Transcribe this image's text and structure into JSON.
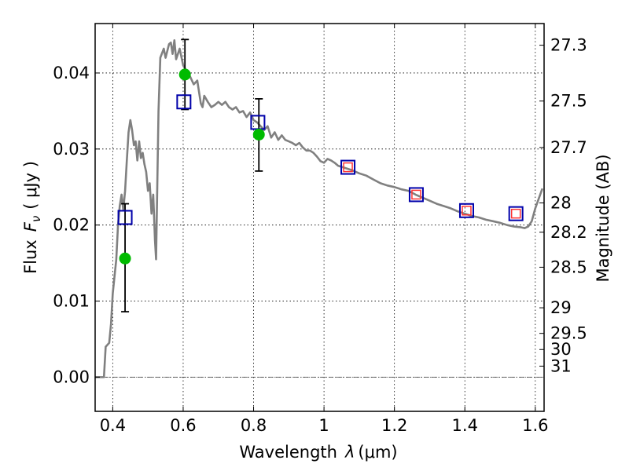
{
  "chart_data": {
    "type": "scatter",
    "title": "",
    "xlabel": "Wavelength",
    "xlabel_symbol": "λ",
    "xlabel_unit": "(μm)",
    "ylabel": "Flux",
    "ylabel_symbol": "F",
    "ylabel_subscript": "ν",
    "ylabel_unit": "( μJy )",
    "y2label": "Magnitude (AB)",
    "xlim": [
      0.35,
      1.625
    ],
    "ylim": [
      -0.0045,
      0.0465
    ],
    "grid": true,
    "xticks": [
      {
        "value": 0.4,
        "label": "0.4"
      },
      {
        "value": 0.6,
        "label": "0.6"
      },
      {
        "value": 0.8,
        "label": "0.8"
      },
      {
        "value": 1.0,
        "label": "1"
      },
      {
        "value": 1.2,
        "label": "1.2"
      },
      {
        "value": 1.4,
        "label": "1.4"
      },
      {
        "value": 1.6,
        "label": "1.6"
      }
    ],
    "yticks": [
      {
        "value": 0.0,
        "label": "0.00"
      },
      {
        "value": 0.01,
        "label": "0.01"
      },
      {
        "value": 0.02,
        "label": "0.02"
      },
      {
        "value": 0.03,
        "label": "0.03"
      },
      {
        "value": 0.04,
        "label": "0.04"
      }
    ],
    "magnitude_ticks": [
      {
        "mag": 27.3,
        "label": "27.3"
      },
      {
        "mag": 27.5,
        "label": "27.5"
      },
      {
        "mag": 27.7,
        "label": "27.7"
      },
      {
        "mag": 28.0,
        "label": "28"
      },
      {
        "mag": 28.2,
        "label": "28.2"
      },
      {
        "mag": 28.5,
        "label": "28.5"
      },
      {
        "mag": 29.0,
        "label": "29"
      },
      {
        "mag": 29.5,
        "label": "29.5"
      },
      {
        "mag": 30.0,
        "label": "30"
      },
      {
        "mag": 31.0,
        "label": "31"
      }
    ],
    "colors": {
      "sed": "#808080",
      "observed": "#00bb00",
      "model_square": "#0000aa",
      "inner_square": "#ff3333",
      "errorbar": "#000000"
    },
    "sed_curve": [
      [
        0.35,
        0.0
      ],
      [
        0.375,
        0.0
      ],
      [
        0.38,
        0.004
      ],
      [
        0.39,
        0.0045
      ],
      [
        0.395,
        0.007
      ],
      [
        0.4,
        0.011
      ],
      [
        0.41,
        0.0155
      ],
      [
        0.415,
        0.02
      ],
      [
        0.42,
        0.0225
      ],
      [
        0.425,
        0.024
      ],
      [
        0.43,
        0.022
      ],
      [
        0.435,
        0.0245
      ],
      [
        0.44,
        0.0285
      ],
      [
        0.445,
        0.0322
      ],
      [
        0.45,
        0.0338
      ],
      [
        0.455,
        0.0325
      ],
      [
        0.46,
        0.0305
      ],
      [
        0.465,
        0.031
      ],
      [
        0.47,
        0.0285
      ],
      [
        0.475,
        0.031
      ],
      [
        0.48,
        0.0288
      ],
      [
        0.485,
        0.0295
      ],
      [
        0.49,
        0.028
      ],
      [
        0.495,
        0.027
      ],
      [
        0.5,
        0.0245
      ],
      [
        0.505,
        0.0255
      ],
      [
        0.51,
        0.0215
      ],
      [
        0.515,
        0.024
      ],
      [
        0.52,
        0.018
      ],
      [
        0.523,
        0.0155
      ],
      [
        0.53,
        0.035
      ],
      [
        0.535,
        0.042
      ],
      [
        0.545,
        0.0432
      ],
      [
        0.55,
        0.042
      ],
      [
        0.56,
        0.0438
      ],
      [
        0.565,
        0.044
      ],
      [
        0.57,
        0.0425
      ],
      [
        0.575,
        0.0443
      ],
      [
        0.58,
        0.0418
      ],
      [
        0.59,
        0.0432
      ],
      [
        0.6,
        0.041
      ],
      [
        0.61,
        0.0402
      ],
      [
        0.62,
        0.0395
      ],
      [
        0.63,
        0.0385
      ],
      [
        0.64,
        0.039
      ],
      [
        0.65,
        0.036
      ],
      [
        0.655,
        0.0355
      ],
      [
        0.66,
        0.037
      ],
      [
        0.67,
        0.0362
      ],
      [
        0.68,
        0.0355
      ],
      [
        0.69,
        0.0358
      ],
      [
        0.7,
        0.0362
      ],
      [
        0.71,
        0.0358
      ],
      [
        0.72,
        0.0362
      ],
      [
        0.73,
        0.0355
      ],
      [
        0.74,
        0.0352
      ],
      [
        0.75,
        0.0355
      ],
      [
        0.76,
        0.0348
      ],
      [
        0.77,
        0.035
      ],
      [
        0.78,
        0.0342
      ],
      [
        0.79,
        0.0348
      ],
      [
        0.8,
        0.0338
      ],
      [
        0.81,
        0.0335
      ],
      [
        0.82,
        0.033
      ],
      [
        0.83,
        0.0325
      ],
      [
        0.84,
        0.033
      ],
      [
        0.85,
        0.0315
      ],
      [
        0.86,
        0.0322
      ],
      [
        0.87,
        0.0312
      ],
      [
        0.88,
        0.0318
      ],
      [
        0.89,
        0.0312
      ],
      [
        0.9,
        0.031
      ],
      [
        0.91,
        0.0308
      ],
      [
        0.92,
        0.0305
      ],
      [
        0.93,
        0.0308
      ],
      [
        0.94,
        0.0302
      ],
      [
        0.95,
        0.0298
      ],
      [
        0.96,
        0.0298
      ],
      [
        0.97,
        0.0295
      ],
      [
        0.98,
        0.029
      ],
      [
        0.99,
        0.0284
      ],
      [
        1.0,
        0.0282
      ],
      [
        1.01,
        0.0287
      ],
      [
        1.02,
        0.0285
      ],
      [
        1.03,
        0.0282
      ],
      [
        1.04,
        0.0278
      ],
      [
        1.06,
        0.0275
      ],
      [
        1.08,
        0.0272
      ],
      [
        1.1,
        0.0268
      ],
      [
        1.12,
        0.0265
      ],
      [
        1.14,
        0.026
      ],
      [
        1.16,
        0.0255
      ],
      [
        1.18,
        0.0252
      ],
      [
        1.2,
        0.025
      ],
      [
        1.22,
        0.0247
      ],
      [
        1.24,
        0.0245
      ],
      [
        1.26,
        0.024
      ],
      [
        1.28,
        0.0236
      ],
      [
        1.3,
        0.0232
      ],
      [
        1.32,
        0.0228
      ],
      [
        1.34,
        0.0225
      ],
      [
        1.36,
        0.0222
      ],
      [
        1.38,
        0.0218
      ],
      [
        1.4,
        0.0215
      ],
      [
        1.42,
        0.0212
      ],
      [
        1.44,
        0.021
      ],
      [
        1.46,
        0.0207
      ],
      [
        1.48,
        0.0205
      ],
      [
        1.5,
        0.0203
      ],
      [
        1.52,
        0.02
      ],
      [
        1.54,
        0.0198
      ],
      [
        1.56,
        0.0197
      ],
      [
        1.57,
        0.0196
      ],
      [
        1.58,
        0.0198
      ],
      [
        1.59,
        0.0205
      ],
      [
        1.6,
        0.0222
      ],
      [
        1.61,
        0.0235
      ],
      [
        1.62,
        0.0248
      ]
    ],
    "observed_points": [
      {
        "x": 0.435,
        "y": 0.0156,
        "yerr_low": 0.0086,
        "yerr_high": 0.0228
      },
      {
        "x": 0.605,
        "y": 0.0398,
        "yerr_low": 0.0352,
        "yerr_high": 0.0444
      },
      {
        "x": 0.815,
        "y": 0.0319,
        "yerr_low": 0.0271,
        "yerr_high": 0.0366
      }
    ],
    "model_points": [
      {
        "x": 0.435,
        "y": 0.021,
        "inner": false
      },
      {
        "x": 0.602,
        "y": 0.0362,
        "inner": false
      },
      {
        "x": 0.812,
        "y": 0.0335,
        "inner": false
      },
      {
        "x": 1.068,
        "y": 0.0276,
        "inner": true
      },
      {
        "x": 1.262,
        "y": 0.024,
        "inner": true
      },
      {
        "x": 1.405,
        "y": 0.0219,
        "inner": true
      },
      {
        "x": 1.545,
        "y": 0.0215,
        "inner": true
      }
    ]
  }
}
